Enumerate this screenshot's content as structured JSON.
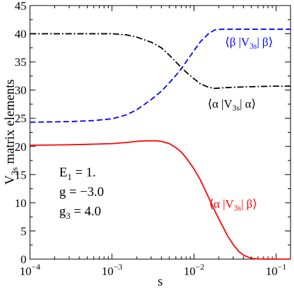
{
  "chart_data": {
    "type": "line",
    "xscale": "log",
    "xlim": [
      0.0001,
      0.15
    ],
    "ylim": [
      0,
      45
    ],
    "xlabel": "s",
    "ylabel": {
      "main": "V",
      "sub": "3s",
      "rest": " matrix elements"
    },
    "y_ticks": [
      0,
      5,
      10,
      15,
      20,
      25,
      30,
      35,
      40,
      45
    ],
    "x_ticks": [
      {
        "value": 0.0001,
        "base": "10",
        "exp": "−4"
      },
      {
        "value": 0.001,
        "base": "10",
        "exp": "−3"
      },
      {
        "value": 0.01,
        "base": "10",
        "exp": "−2"
      },
      {
        "value": 0.1,
        "base": "10",
        "exp": "−1"
      }
    ],
    "parameters": [
      {
        "main": "E",
        "sub": "1",
        "rest": " = 1."
      },
      {
        "main": "g = −3.0",
        "sub": "",
        "rest": ""
      },
      {
        "main": "g",
        "sub": "3",
        "rest": " = 4.0"
      }
    ],
    "series": [
      {
        "id": "alpha-alpha",
        "label": {
          "pre": "⟨α |V",
          "sub": "3s",
          "post": "| α⟩"
        },
        "color": "#000000",
        "dash": "dash-dot",
        "points": [
          [
            0.0001,
            40.0
          ],
          [
            0.0002,
            40.0
          ],
          [
            0.0005,
            40.0
          ],
          [
            0.001,
            40.0
          ],
          [
            0.0015,
            39.8
          ],
          [
            0.002,
            39.4
          ],
          [
            0.003,
            38.5
          ],
          [
            0.004,
            37.5
          ],
          [
            0.005,
            36.2
          ],
          [
            0.006,
            35.0
          ],
          [
            0.007,
            34.0
          ],
          [
            0.008,
            33.2
          ],
          [
            0.01,
            32.0
          ],
          [
            0.012,
            31.1
          ],
          [
            0.015,
            30.5
          ],
          [
            0.018,
            30.3
          ],
          [
            0.022,
            30.4
          ],
          [
            0.03,
            30.5
          ],
          [
            0.05,
            30.6
          ],
          [
            0.1,
            30.7
          ],
          [
            0.15,
            30.7
          ]
        ]
      },
      {
        "id": "beta-beta",
        "label": {
          "pre": "⟨β |V",
          "sub": "3s",
          "post": "| β⟩"
        },
        "color": "#0000ff",
        "dash": "dashed",
        "points": [
          [
            0.0001,
            24.3
          ],
          [
            0.0003,
            24.4
          ],
          [
            0.0006,
            24.6
          ],
          [
            0.001,
            24.9
          ],
          [
            0.0015,
            25.6
          ],
          [
            0.002,
            26.5
          ],
          [
            0.003,
            28.3
          ],
          [
            0.004,
            29.8
          ],
          [
            0.005,
            31.3
          ],
          [
            0.006,
            32.6
          ],
          [
            0.007,
            33.8
          ],
          [
            0.008,
            35.0
          ],
          [
            0.01,
            37.0
          ],
          [
            0.012,
            38.6
          ],
          [
            0.015,
            40.0
          ],
          [
            0.018,
            40.7
          ],
          [
            0.022,
            40.8
          ],
          [
            0.03,
            40.8
          ],
          [
            0.05,
            40.8
          ],
          [
            0.1,
            40.8
          ],
          [
            0.15,
            40.8
          ]
        ]
      },
      {
        "id": "alpha-beta",
        "label": {
          "pre": "⟨α |V",
          "sub": "3s",
          "post": "| β⟩"
        },
        "color": "#ff0000",
        "dash": "solid",
        "points": [
          [
            0.0001,
            20.2
          ],
          [
            0.0003,
            20.3
          ],
          [
            0.0006,
            20.4
          ],
          [
            0.001,
            20.5
          ],
          [
            0.0015,
            20.7
          ],
          [
            0.002,
            20.9
          ],
          [
            0.0025,
            21.0
          ],
          [
            0.003,
            21.0
          ],
          [
            0.0035,
            21.0
          ],
          [
            0.004,
            20.9
          ],
          [
            0.005,
            20.5
          ],
          [
            0.006,
            19.8
          ],
          [
            0.007,
            19.0
          ],
          [
            0.008,
            18.0
          ],
          [
            0.01,
            16.0
          ],
          [
            0.012,
            14.0
          ],
          [
            0.015,
            11.0
          ],
          [
            0.018,
            8.5
          ],
          [
            0.022,
            6.0
          ],
          [
            0.026,
            4.0
          ],
          [
            0.03,
            2.6
          ],
          [
            0.035,
            1.4
          ],
          [
            0.04,
            0.7
          ],
          [
            0.05,
            0.15
          ],
          [
            0.06,
            0.03
          ],
          [
            0.08,
            0.0
          ],
          [
            0.1,
            0.0
          ],
          [
            0.15,
            0.0
          ]
        ]
      }
    ]
  }
}
